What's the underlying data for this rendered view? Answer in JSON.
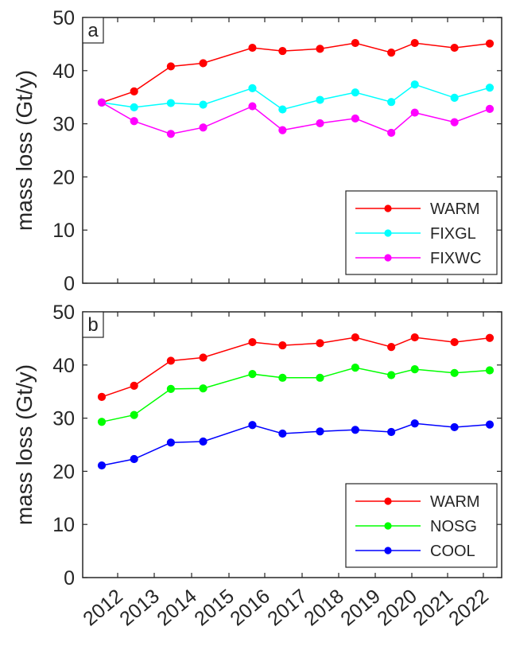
{
  "chart_data": [
    {
      "type": "line",
      "panel_label": "a",
      "ylabel": "mass loss (Gt/y)",
      "ylim": [
        0,
        50
      ],
      "yticks": [
        0,
        10,
        20,
        30,
        40,
        50
      ],
      "legend_position": "bottom-right",
      "x": [
        2011.62,
        2012.5,
        2013.5,
        2014.38,
        2015.72,
        2016.54,
        2017.56,
        2018.52,
        2019.5,
        2020.14,
        2021.22,
        2022.18
      ],
      "series": [
        {
          "name": "WARM",
          "color": "#ff0000",
          "values": [
            34.0,
            36.1,
            40.8,
            41.4,
            44.3,
            43.7,
            44.1,
            45.2,
            43.4,
            45.2,
            44.3,
            45.1
          ]
        },
        {
          "name": "FIXGL",
          "color": "#00ffff",
          "values": [
            34.0,
            33.1,
            33.9,
            33.6,
            36.7,
            32.7,
            34.5,
            35.9,
            34.1,
            37.4,
            34.9,
            36.8
          ]
        },
        {
          "name": "FIXWC",
          "color": "#ff00ff",
          "values": [
            34.0,
            30.5,
            28.1,
            29.3,
            33.3,
            28.8,
            30.1,
            31.0,
            28.3,
            32.1,
            30.3,
            32.8
          ]
        }
      ]
    },
    {
      "type": "line",
      "panel_label": "b",
      "ylabel": "mass loss (Gt/y)",
      "ylim": [
        0,
        50
      ],
      "yticks": [
        0,
        10,
        20,
        30,
        40,
        50
      ],
      "xticks": [
        "2012",
        "2013",
        "2014",
        "2015",
        "2016",
        "2017",
        "2018",
        "2019",
        "2020",
        "2021",
        "2022"
      ],
      "legend_position": "bottom-right",
      "x": [
        2011.62,
        2012.5,
        2013.5,
        2014.38,
        2015.72,
        2016.54,
        2017.56,
        2018.52,
        2019.5,
        2020.14,
        2021.22,
        2022.18
      ],
      "series": [
        {
          "name": "WARM",
          "color": "#ff0000",
          "values": [
            34.0,
            36.1,
            40.8,
            41.4,
            44.3,
            43.7,
            44.1,
            45.2,
            43.4,
            45.2,
            44.3,
            45.1
          ]
        },
        {
          "name": "NOSG",
          "color": "#00ff00",
          "values": [
            29.3,
            30.6,
            35.5,
            35.6,
            38.3,
            37.6,
            37.6,
            39.5,
            38.1,
            39.2,
            38.5,
            39.0
          ]
        },
        {
          "name": "COOL",
          "color": "#0000ff",
          "values": [
            21.1,
            22.3,
            25.4,
            25.6,
            28.7,
            27.1,
            27.5,
            27.8,
            27.4,
            29.0,
            28.3,
            28.8
          ]
        }
      ]
    }
  ]
}
